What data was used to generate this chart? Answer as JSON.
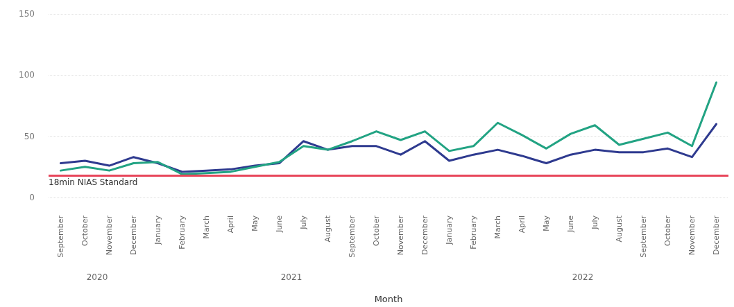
{
  "chart_data": {
    "type": "line",
    "xlabel": "Month",
    "categories": [
      "September",
      "October",
      "November",
      "December",
      "January",
      "February",
      "March",
      "April",
      "May",
      "June",
      "July",
      "August",
      "September",
      "October",
      "November",
      "December",
      "January",
      "February",
      "March",
      "April",
      "May",
      "June",
      "July",
      "August",
      "September",
      "October",
      "November",
      "December"
    ],
    "series": [
      {
        "color": "#2e3a8f",
        "values": [
          28,
          30,
          26,
          33,
          28,
          21,
          22,
          23,
          26,
          28,
          46,
          39,
          42,
          42,
          35,
          46,
          30,
          35,
          39,
          34,
          28,
          35,
          39,
          37,
          37,
          40,
          33,
          60
        ]
      },
      {
        "color": "#22a383",
        "values": [
          22,
          25,
          22,
          28,
          29,
          19,
          20,
          21,
          25,
          29,
          42,
          39,
          46,
          54,
          47,
          54,
          38,
          42,
          61,
          51,
          40,
          52,
          59,
          43,
          48,
          53,
          42,
          94
        ]
      }
    ],
    "ylim": [
      0,
      150
    ],
    "yticks": [
      0,
      50,
      100,
      150
    ],
    "grid": "y",
    "marker": "none",
    "line_style": "solid",
    "ref_lines": [
      {
        "axis": "y",
        "value": 18,
        "label": "18min NIAS Standard",
        "color": "#e8455a"
      }
    ],
    "annotations": [
      "2020",
      "2021",
      "2022"
    ]
  }
}
